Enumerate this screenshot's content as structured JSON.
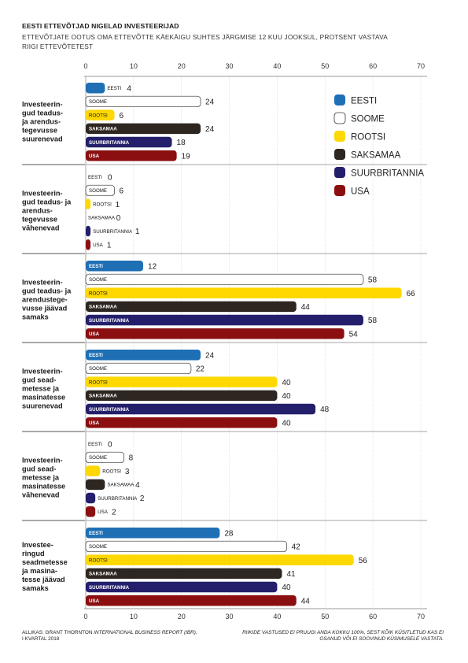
{
  "title": "EESTI ETTEVÕTJAD NIGELAD INVESTEERIJAD",
  "subtitle": "ETTEVÕTJATE OOTUS OMA ETTEVÕTTE KÄEKÄIGU SUHTES JÄRGMISE 12 KUU JOOKSUL, PROTSENT VASTAVA RIIGI ETTEVÕTETEST",
  "source": {
    "prefix": "ALLIKAS: GRANT THORNTON ",
    "italic": "INTERNATIONAL BUSINESS REPORT (IBR),",
    "suffix": "I KVARTAL 2018"
  },
  "footnote": "RIIKIDE VASTUSED EI PRUUGI ANDA KOKKU 100%, SEST KÕIK KÜSITLETUD KAS EI OSANUD VÕI EI SOOVINUD KÜSIMUSELE VASTATA.",
  "colors": {
    "EESTI": "#1f6fb5",
    "SOOME": "#ffffff",
    "ROOTSI": "#ffd800",
    "SAKSAMAA": "#2e2620",
    "SUURBRITANNIA": "#241f6b",
    "USA": "#8b0f10"
  },
  "chart_data": {
    "type": "bar",
    "orientation": "horizontal",
    "xlim": [
      0,
      70
    ],
    "xticks": [
      0,
      10,
      20,
      30,
      40,
      50,
      60,
      70
    ],
    "grid": true,
    "legend_position": "top-right",
    "series_names": [
      "EESTI",
      "SOOME",
      "ROOTSI",
      "SAKSAMAA",
      "SUURBRITANNIA",
      "USA"
    ],
    "groups": [
      {
        "label": "Investeerin-\ngud teadus-\nja arendus-\ntegevusse\nsuurenevad",
        "values": [
          4,
          24,
          6,
          24,
          18,
          19
        ]
      },
      {
        "label": "Investeerin-\ngud teadus- ja\narendus-\ntegevusse\nvähenevad",
        "values": [
          0,
          6,
          1,
          0,
          1,
          1
        ]
      },
      {
        "label": "Investeerin-\ngud teadus- ja\narendustege-\nvusse jäävad\nsamaks",
        "values": [
          12,
          58,
          66,
          44,
          58,
          54
        ]
      },
      {
        "label": "Investeerin-\ngud sead-\nmetesse ja\nmasinatesse\nsuurenevad",
        "values": [
          24,
          22,
          40,
          40,
          48,
          40
        ]
      },
      {
        "label": "Investeerin-\ngud sead-\nmetesse ja\nmasinatesse\nvähenevad",
        "values": [
          0,
          8,
          3,
          4,
          2,
          2
        ]
      },
      {
        "label": "Investee-\nringud\nseadmetesse\nja masina-\ntesse jäävad\nsamaks",
        "values": [
          28,
          42,
          56,
          41,
          40,
          44
        ]
      }
    ]
  }
}
